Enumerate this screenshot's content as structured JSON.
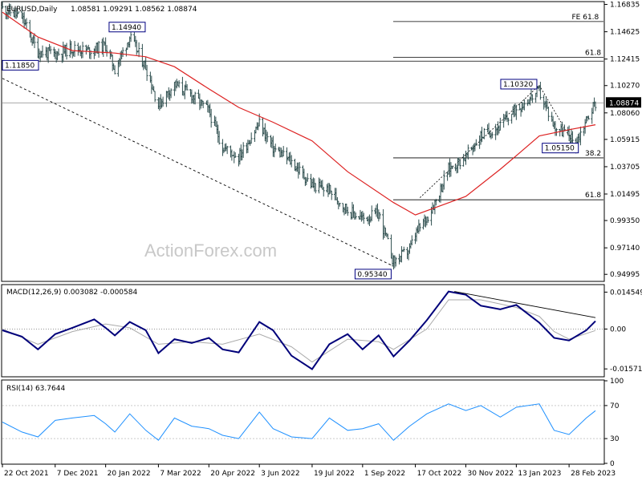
{
  "chart_data": [
    {
      "type": "ohlc",
      "title": "EURUSD,Daily",
      "ohlc_header": "1.08581 1.09291 1.08562 1.08874",
      "watermark": "ActionForex.com",
      "colors": {
        "bars": "#2f4f4f",
        "moving_average": "#dd2222",
        "trendline": "#000000"
      },
      "y_axis_ticks": [
        "1.16835",
        "1.14625",
        "1.12415",
        "1.10270",
        "1.08060",
        "1.05915",
        "1.03705",
        "1.01495",
        "0.99350",
        "0.97140",
        "0.94995"
      ],
      "ylim": [
        0.9449,
        1.17
      ],
      "last_price_label": "1.08874",
      "last_price": 1.08874,
      "horizontal_lines": [
        {
          "label": "",
          "value": 1.1225
        },
        {
          "label": "",
          "value": 1.0887
        }
      ],
      "fib_lines": [
        {
          "label": "FE 61.8",
          "value": 1.1545
        },
        {
          "label": "61.8",
          "value": 1.1255
        },
        {
          "label": "38.2",
          "value": 1.0442
        },
        {
          "label": "61.8",
          "value": 1.0103
        }
      ],
      "price_markers": [
        {
          "label": "1.14940",
          "value": 1.1494,
          "date": "30 Jan 2022"
        },
        {
          "label": "1.11850",
          "value": 1.1185,
          "date": "22 Oct 2021"
        },
        {
          "label": "1.10320",
          "value": 1.1032,
          "date": "2 Feb 2023"
        },
        {
          "label": "1.05150",
          "value": 1.0515,
          "date": "6 Mar 2023"
        },
        {
          "label": "0.95340",
          "value": 0.9534,
          "date": "28 Sep 2022"
        }
      ],
      "close_series": [
        [
          "22 Oct 2021",
          1.165
        ],
        [
          "8 Nov 2021",
          1.158
        ],
        [
          "22 Nov 2021",
          1.13
        ],
        [
          "7 Dec 2021",
          1.128
        ],
        [
          "22 Dec 2021",
          1.133
        ],
        [
          "5 Jan 2022",
          1.131
        ],
        [
          "20 Jan 2022",
          1.135
        ],
        [
          "28 Jan 2022",
          1.116
        ],
        [
          "10 Feb 2022",
          1.142
        ],
        [
          "24 Feb 2022",
          1.118
        ],
        [
          "7 Mar 2022",
          1.087
        ],
        [
          "21 Mar 2022",
          1.104
        ],
        [
          "5 Apr 2022",
          1.095
        ],
        [
          "20 Apr 2022",
          1.082
        ],
        [
          "2 May 2022",
          1.053
        ],
        [
          "16 May 2022",
          1.045
        ],
        [
          "3 Jun 2022",
          1.072
        ],
        [
          "15 Jun 2022",
          1.052
        ],
        [
          "1 Jul 2022",
          1.041
        ],
        [
          "19 Jul 2022",
          1.022
        ],
        [
          "3 Aug 2022",
          1.018
        ],
        [
          "19 Aug 2022",
          1.002
        ],
        [
          "1 Sep 2022",
          0.995
        ],
        [
          "15 Sep 2022",
          0.999
        ],
        [
          "28 Sep 2022",
          0.96
        ],
        [
          "12 Oct 2022",
          0.97
        ],
        [
          "17 Oct 2022",
          0.982
        ],
        [
          "27 Oct 2022",
          0.996
        ],
        [
          "4 Nov 2022",
          1.01
        ],
        [
          "15 Nov 2022",
          1.035
        ],
        [
          "30 Nov 2022",
          1.045
        ],
        [
          "13 Dec 2022",
          1.062
        ],
        [
          "30 Dec 2022",
          1.07
        ],
        [
          "13 Jan 2023",
          1.084
        ],
        [
          "2 Feb 2023",
          1.098
        ],
        [
          "15 Feb 2023",
          1.07
        ],
        [
          "28 Feb 2023",
          1.062
        ],
        [
          "6 Mar 2023",
          1.056
        ],
        [
          "15 Mar 2023",
          1.075
        ],
        [
          "23 Mar 2023",
          1.08874
        ]
      ],
      "moving_average_series": [
        [
          "22 Oct 2021",
          1.162
        ],
        [
          "22 Nov 2021",
          1.142
        ],
        [
          "22 Dec 2021",
          1.131
        ],
        [
          "28 Jan 2022",
          1.129
        ],
        [
          "24 Feb 2022",
          1.126
        ],
        [
          "21 Mar 2022",
          1.118
        ],
        [
          "20 Apr 2022",
          1.1
        ],
        [
          "16 May 2022",
          1.085
        ],
        [
          "15 Jun 2022",
          1.073
        ],
        [
          "19 Jul 2022",
          1.058
        ],
        [
          "19 Aug 2022",
          1.033
        ],
        [
          "28 Sep 2022",
          1.008
        ],
        [
          "17 Oct 2022",
          0.998
        ],
        [
          "30 Nov 2022",
          1.013
        ],
        [
          "30 Dec 2022",
          1.035
        ],
        [
          "13 Jan 2023",
          1.046
        ],
        [
          "2 Feb 2023",
          1.062
        ],
        [
          "28 Feb 2023",
          1.067
        ],
        [
          "23 Mar 2023",
          1.071
        ]
      ]
    },
    {
      "type": "line",
      "title": "MACD(12,26,9) 0.003082 -0.000584",
      "y_axis_ticks": [
        "0.014549",
        "0.00",
        "-0.015712"
      ],
      "ylim": [
        -0.0185,
        0.0172
      ],
      "series": [
        {
          "name": "",
          "color": "#00007a",
          "values": [
            [
              "22 Oct 2021",
              -0.0005
            ],
            [
              "8 Nov 2021",
              -0.003
            ],
            [
              "22 Nov 2021",
              -0.008
            ],
            [
              "7 Dec 2021",
              -0.002
            ],
            [
              "22 Dec 2021",
              0.0005
            ],
            [
              "10 Jan 2022",
              0.0038
            ],
            [
              "20 Jan 2022",
              0.0005
            ],
            [
              "28 Jan 2022",
              -0.0025
            ],
            [
              "10 Feb 2022",
              0.0028
            ],
            [
              "24 Feb 2022",
              -0.0005
            ],
            [
              "7 Mar 2022",
              -0.0095
            ],
            [
              "21 Mar 2022",
              -0.004
            ],
            [
              "5 Apr 2022",
              -0.0055
            ],
            [
              "20 Apr 2022",
              -0.0035
            ],
            [
              "2 May 2022",
              -0.008
            ],
            [
              "16 May 2022",
              -0.0092
            ],
            [
              "3 Jun 2022",
              0.0028
            ],
            [
              "15 Jun 2022",
              -0.0005
            ],
            [
              "1 Jul 2022",
              -0.0105
            ],
            [
              "19 Jul 2022",
              -0.0158
            ],
            [
              "3 Aug 2022",
              -0.006
            ],
            [
              "19 Aug 2022",
              -0.002
            ],
            [
              "1 Sep 2022",
              -0.008
            ],
            [
              "15 Sep 2022",
              -0.0025
            ],
            [
              "28 Sep 2022",
              -0.0108
            ],
            [
              "12 Oct 2022",
              -0.0045
            ],
            [
              "27 Oct 2022",
              0.0035
            ],
            [
              "15 Nov 2022",
              0.0148
            ],
            [
              "30 Nov 2022",
              0.0135
            ],
            [
              "13 Dec 2022",
              0.0092
            ],
            [
              "30 Dec 2022",
              0.0078
            ],
            [
              "13 Jan 2023",
              0.0095
            ],
            [
              "2 Feb 2023",
              0.0025
            ],
            [
              "15 Feb 2023",
              -0.0035
            ],
            [
              "28 Feb 2023",
              -0.0045
            ],
            [
              "15 Mar 2023",
              -0.0005
            ],
            [
              "23 Mar 2023",
              0.0031
            ]
          ]
        },
        {
          "name": "",
          "color": "#aaaaaa",
          "values": [
            [
              "22 Oct 2021",
              0.0
            ],
            [
              "22 Nov 2021",
              -0.006
            ],
            [
              "22 Dec 2021",
              -0.001
            ],
            [
              "20 Jan 2022",
              0.002
            ],
            [
              "10 Feb 2022",
              0.0005
            ],
            [
              "7 Mar 2022",
              -0.006
            ],
            [
              "5 Apr 2022",
              -0.005
            ],
            [
              "2 May 2022",
              -0.006
            ],
            [
              "3 Jun 2022",
              -0.002
            ],
            [
              "1 Jul 2022",
              -0.007
            ],
            [
              "19 Jul 2022",
              -0.013
            ],
            [
              "19 Aug 2022",
              -0.004
            ],
            [
              "15 Sep 2022",
              -0.005
            ],
            [
              "28 Sep 2022",
              -0.008
            ],
            [
              "27 Oct 2022",
              0.0
            ],
            [
              "15 Nov 2022",
              0.0115
            ],
            [
              "13 Dec 2022",
              0.0115
            ],
            [
              "13 Jan 2023",
              0.0085
            ],
            [
              "2 Feb 2023",
              0.005
            ],
            [
              "15 Feb 2023",
              -0.001
            ],
            [
              "28 Feb 2023",
              -0.004
            ],
            [
              "23 Mar 2023",
              -0.0006
            ]
          ]
        }
      ],
      "trendline": [
        [
          "20 Nov 2022",
          0.0148
        ],
        [
          "23 Mar 2023",
          0.0045
        ]
      ]
    },
    {
      "type": "line",
      "title": "RSI(14) 63.7644",
      "y_axis_ticks": [
        "100",
        "70",
        "30",
        "0"
      ],
      "ylim": [
        0,
        100
      ],
      "levels": [
        70,
        30
      ],
      "series": [
        {
          "name": "",
          "color": "#1e90ff",
          "values": [
            [
              "22 Oct 2021",
              50
            ],
            [
              "8 Nov 2021",
              38
            ],
            [
              "22 Nov 2021",
              32
            ],
            [
              "7 Dec 2021",
              52
            ],
            [
              "22 Dec 2021",
              55
            ],
            [
              "10 Jan 2022",
              58
            ],
            [
              "20 Jan 2022",
              48
            ],
            [
              "28 Jan 2022",
              38
            ],
            [
              "10 Feb 2022",
              60
            ],
            [
              "24 Feb 2022",
              40
            ],
            [
              "7 Mar 2022",
              28
            ],
            [
              "21 Mar 2022",
              55
            ],
            [
              "5 Apr 2022",
              45
            ],
            [
              "20 Apr 2022",
              42
            ],
            [
              "2 May 2022",
              34
            ],
            [
              "16 May 2022",
              30
            ],
            [
              "3 Jun 2022",
              62
            ],
            [
              "15 Jun 2022",
              42
            ],
            [
              "1 Jul 2022",
              32
            ],
            [
              "19 Jul 2022",
              30
            ],
            [
              "3 Aug 2022",
              55
            ],
            [
              "19 Aug 2022",
              40
            ],
            [
              "1 Sep 2022",
              42
            ],
            [
              "15 Sep 2022",
              48
            ],
            [
              "28 Sep 2022",
              28
            ],
            [
              "12 Oct 2022",
              45
            ],
            [
              "27 Oct 2022",
              60
            ],
            [
              "15 Nov 2022",
              72
            ],
            [
              "30 Nov 2022",
              64
            ],
            [
              "13 Dec 2022",
              70
            ],
            [
              "30 Dec 2022",
              56
            ],
            [
              "13 Jan 2023",
              68
            ],
            [
              "2 Feb 2023",
              72
            ],
            [
              "15 Feb 2023",
              40
            ],
            [
              "28 Feb 2023",
              35
            ],
            [
              "15 Mar 2023",
              55
            ],
            [
              "23 Mar 2023",
              63.76
            ]
          ]
        }
      ]
    }
  ],
  "x_axis_dates": [
    "22 Oct 2021",
    "7 Dec 2021",
    "20 Jan 2022",
    "7 Mar 2022",
    "20 Apr 2022",
    "3 Jun 2022",
    "19 Jul 2022",
    "1 Sep 2022",
    "17 Oct 2022",
    "30 Nov 2022",
    "13 Jan 2023",
    "28 Feb 2023"
  ]
}
